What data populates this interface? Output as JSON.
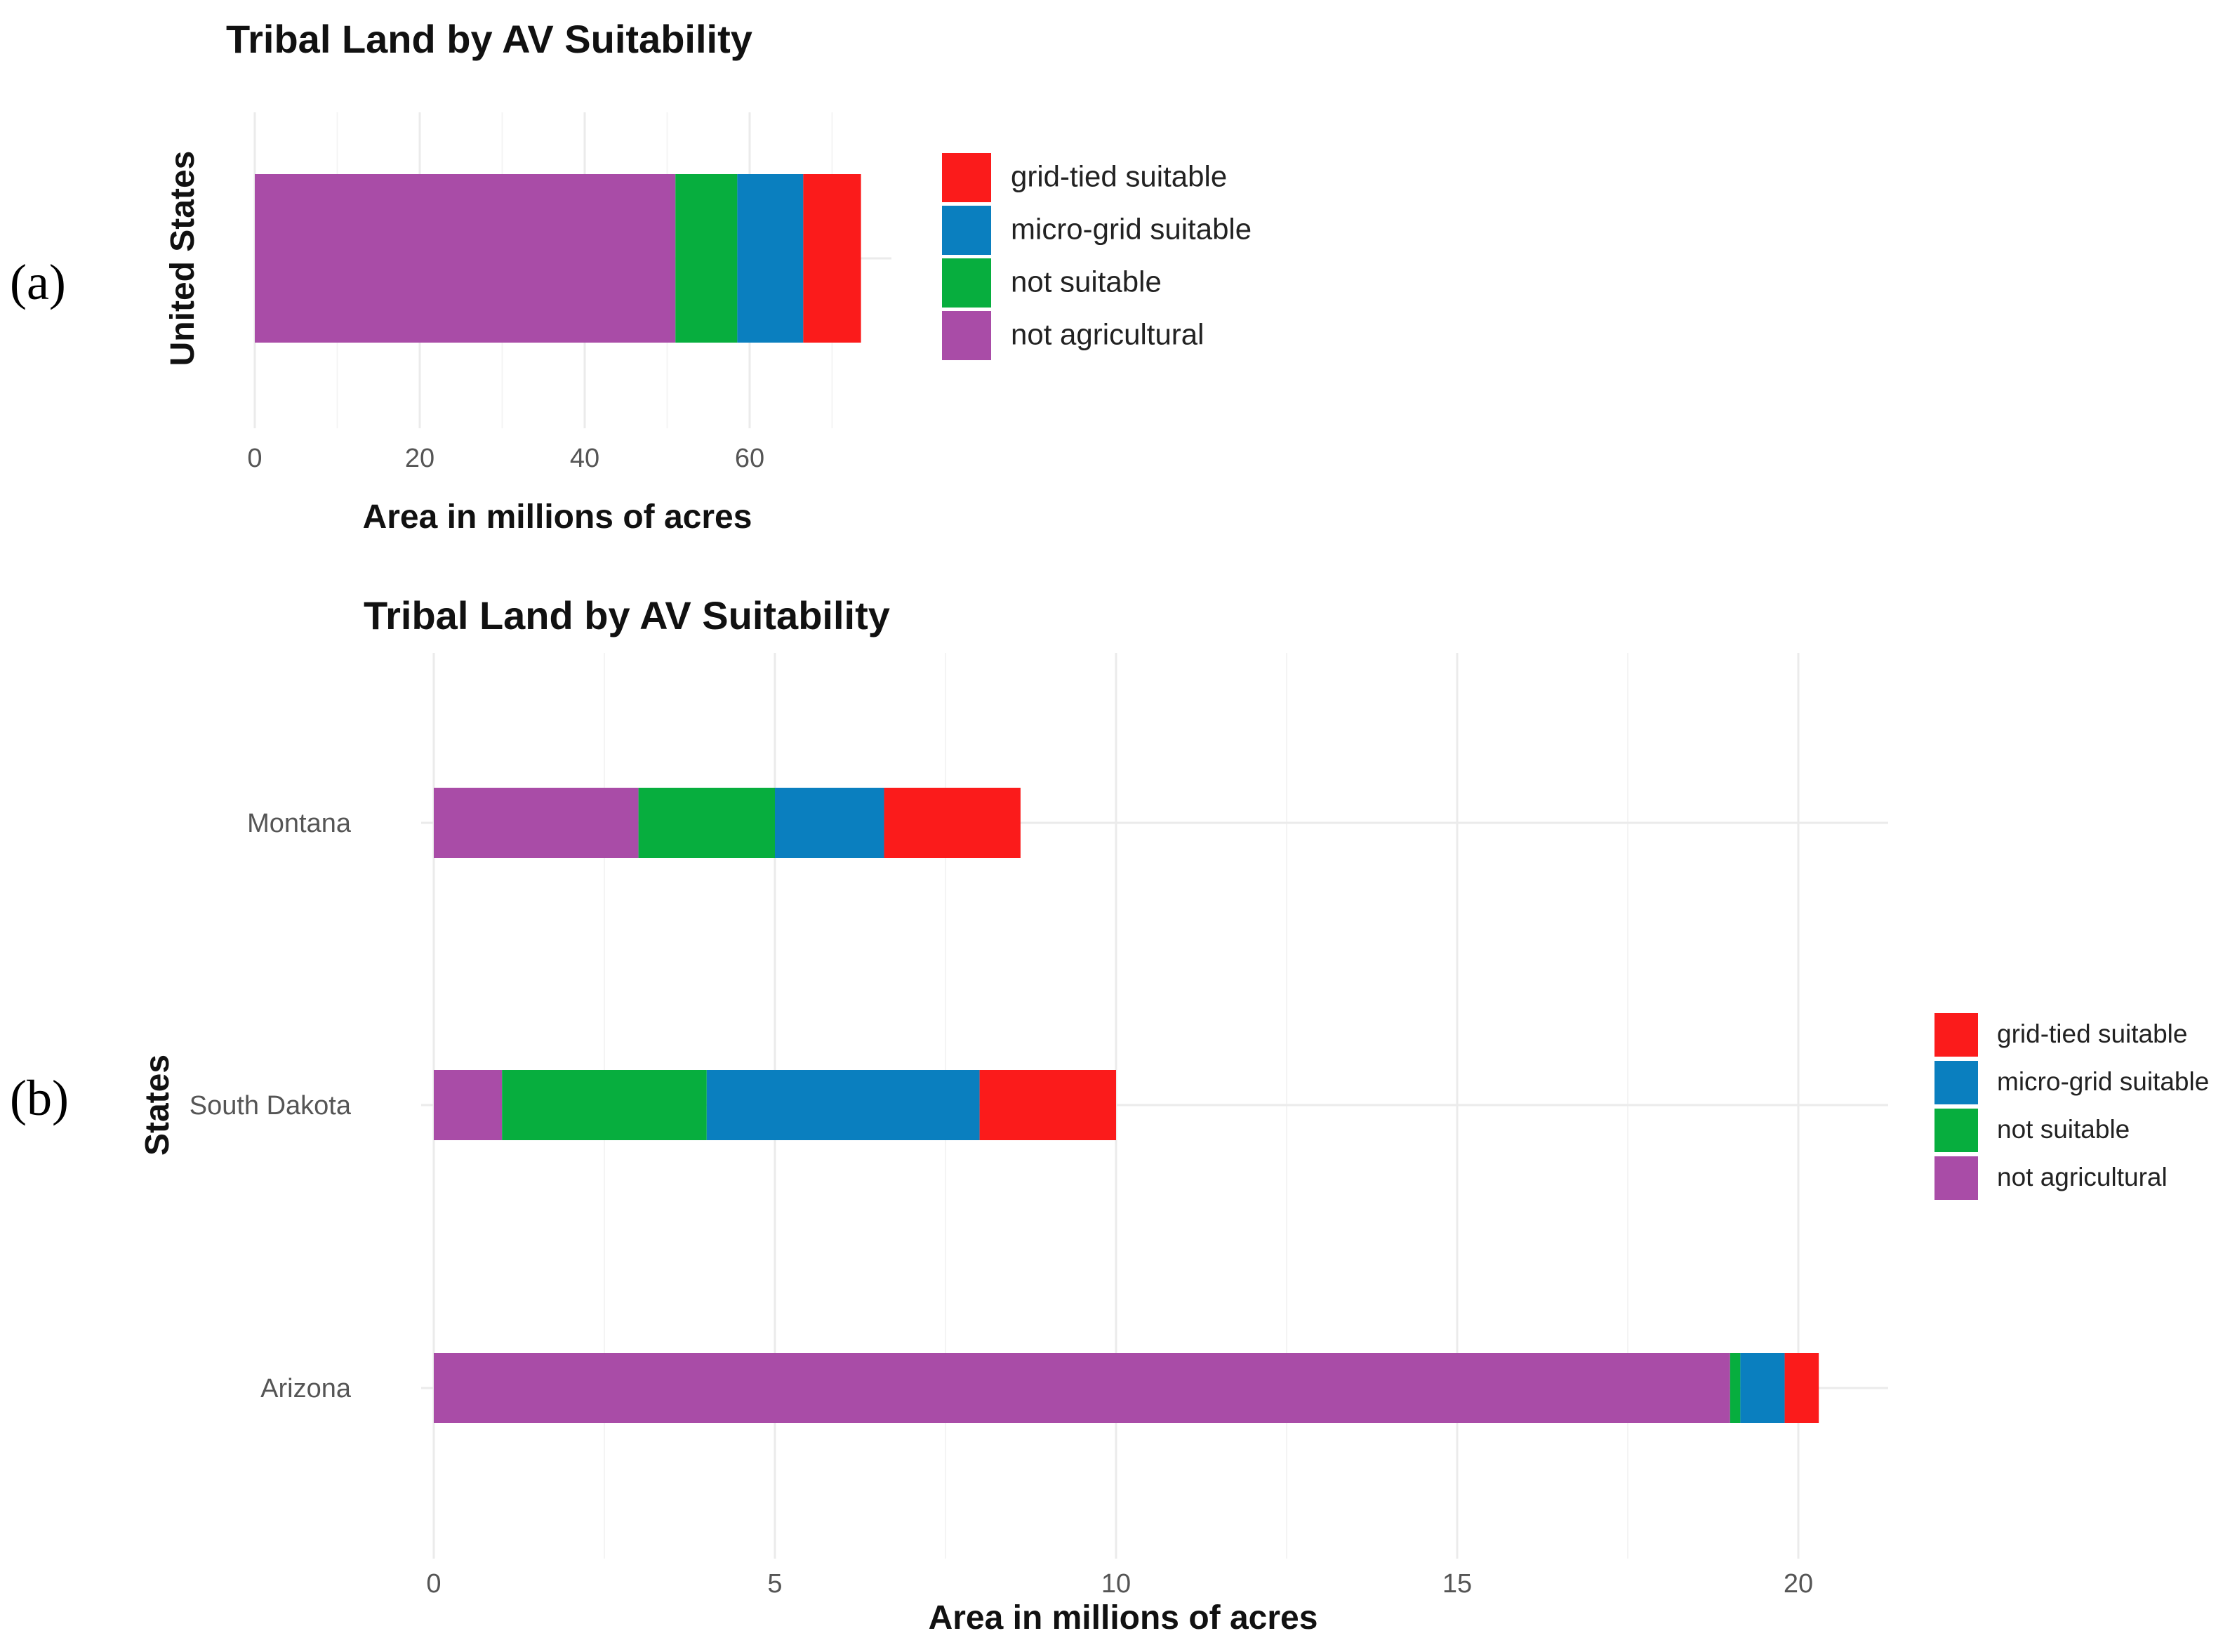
{
  "panels": [
    {
      "label": "(a)"
    },
    {
      "label": "(b)"
    }
  ],
  "colors": {
    "grid-tied suitable": "#fb1b1b",
    "micro-grid suitable": "#0a7fbf",
    "not suitable": "#07ae3e",
    "not agricultural": "#a94ca7"
  },
  "chart_data": [
    {
      "type": "bar",
      "orientation": "horizontal",
      "stacked": true,
      "title": "Tribal Land by AV Suitability",
      "xlabel": "Area in millions of acres",
      "ylabel": "United States",
      "categories": [
        ""
      ],
      "xlim": [
        0,
        77
      ],
      "xticks": [
        0,
        20,
        40,
        60
      ],
      "grid": true,
      "legend_position": "right",
      "legend": [
        "grid-tied suitable",
        "micro-grid suitable",
        "not suitable",
        "not agricultural"
      ],
      "series": [
        {
          "name": "not agricultural",
          "values": [
            51.0
          ]
        },
        {
          "name": "not suitable",
          "values": [
            7.5
          ]
        },
        {
          "name": "micro-grid suitable",
          "values": [
            8.0
          ]
        },
        {
          "name": "grid-tied suitable",
          "values": [
            7.0
          ]
        }
      ]
    },
    {
      "type": "bar",
      "orientation": "horizontal",
      "stacked": true,
      "title": "Tribal Land by AV Suitability",
      "xlabel": "Area in millions of acres",
      "ylabel": "States",
      "categories": [
        "Montana",
        "South Dakota",
        "Arizona"
      ],
      "xlim": [
        0,
        21.3
      ],
      "xticks": [
        0,
        5,
        10,
        15,
        20
      ],
      "grid": true,
      "legend_position": "right",
      "legend": [
        "grid-tied suitable",
        "micro-grid suitable",
        "not suitable",
        "not agricultural"
      ],
      "series": [
        {
          "name": "not agricultural",
          "values": [
            3.0,
            1.0,
            19.0
          ]
        },
        {
          "name": "not suitable",
          "values": [
            2.0,
            3.0,
            0.15
          ]
        },
        {
          "name": "micro-grid suitable",
          "values": [
            1.6,
            4.0,
            0.65
          ]
        },
        {
          "name": "grid-tied suitable",
          "values": [
            2.0,
            2.0,
            0.5
          ]
        }
      ]
    }
  ]
}
